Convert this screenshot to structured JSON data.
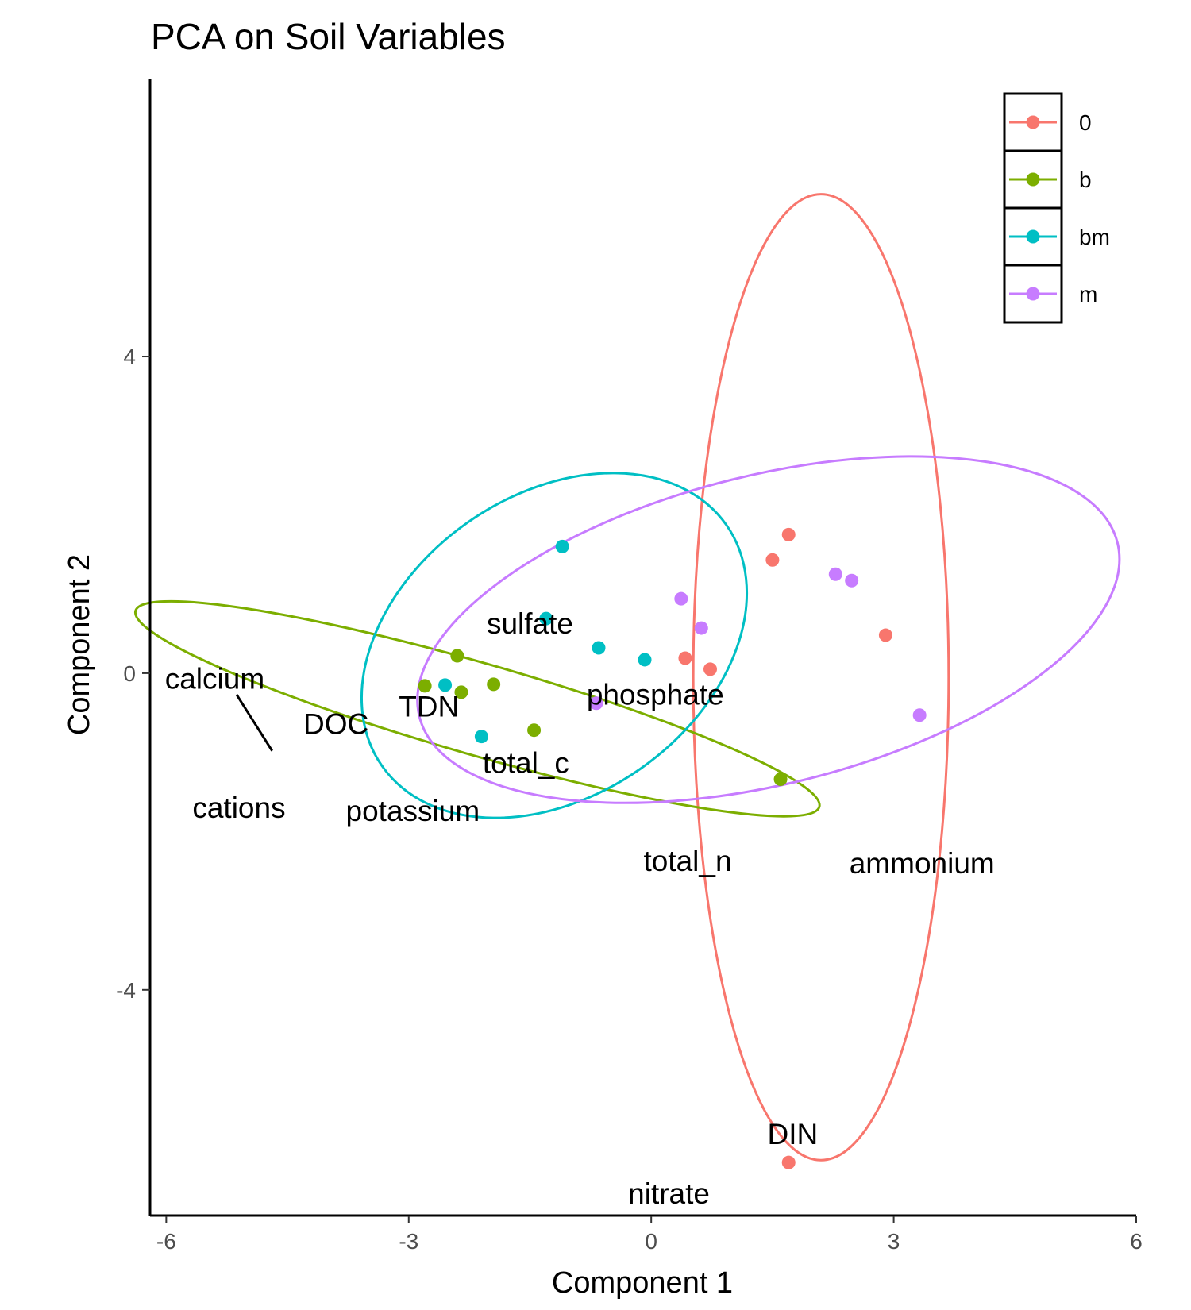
{
  "chart_data": {
    "type": "scatter",
    "title": "PCA on Soil Variables",
    "xlabel": "Component 1",
    "ylabel": "Component 2",
    "xlim": [
      -6.2,
      6.0
    ],
    "ylim": [
      -6.85,
      7.5
    ],
    "x_ticks": [
      -6,
      -3,
      0,
      3,
      6
    ],
    "x_tick_labels": [
      "-6",
      "-3",
      "0",
      "3",
      "6"
    ],
    "y_ticks": [
      4,
      0,
      -4
    ],
    "y_tick_labels": [
      "4",
      "0",
      "-4"
    ],
    "grid": false,
    "legend_position": "top-right",
    "series": [
      {
        "name": "0",
        "color": "#F8766D",
        "points": [
          [
            1.7,
            1.75
          ],
          [
            1.5,
            1.43
          ],
          [
            2.9,
            0.48
          ],
          [
            0.42,
            0.19
          ],
          [
            0.73,
            0.05
          ],
          [
            1.7,
            -6.18
          ]
        ],
        "ellipse": {
          "cx": 2.1,
          "cy": -0.05,
          "rx": 1.58,
          "ry": 6.1,
          "angle_deg": 0
        }
      },
      {
        "name": "b",
        "color": "#7CAE00",
        "points": [
          [
            -2.4,
            0.22
          ],
          [
            -2.8,
            -0.16
          ],
          [
            -2.35,
            -0.24
          ],
          [
            -1.95,
            -0.14
          ],
          [
            -1.45,
            -0.72
          ],
          [
            1.6,
            -1.34
          ]
        ],
        "ellipse": {
          "cx": -2.15,
          "cy": -0.45,
          "rx": 4.4,
          "ry": 0.58,
          "angle_deg": -16
        }
      },
      {
        "name": "bm",
        "color": "#00BFC4",
        "points": [
          [
            -1.1,
            1.6
          ],
          [
            -1.3,
            0.69
          ],
          [
            -0.65,
            0.32
          ],
          [
            -0.08,
            0.17
          ],
          [
            -2.55,
            -0.15
          ],
          [
            -2.1,
            -0.8
          ]
        ],
        "ellipse": {
          "cx": -1.2,
          "cy": 0.35,
          "rx": 2.6,
          "ry": 1.9,
          "angle_deg": 35
        }
      },
      {
        "name": "m",
        "color": "#C77CFF",
        "points": [
          [
            0.37,
            0.94
          ],
          [
            0.62,
            0.57
          ],
          [
            2.28,
            1.25
          ],
          [
            2.48,
            1.17
          ],
          [
            -0.68,
            -0.38
          ],
          [
            3.32,
            -0.53
          ]
        ],
        "ellipse": {
          "cx": 1.45,
          "cy": 0.55,
          "rx": 4.45,
          "ry": 1.95,
          "angle_deg": 14
        }
      }
    ],
    "variable_labels": [
      {
        "text": "sulfate",
        "x": -1.5,
        "y": 0.6
      },
      {
        "text": "calcium",
        "x": -5.4,
        "y": -0.1
      },
      {
        "text": "DOC",
        "x": -3.9,
        "y": -0.67
      },
      {
        "text": "TDN",
        "x": -2.75,
        "y": -0.45
      },
      {
        "text": "phosphate",
        "x": 0.05,
        "y": -0.3
      },
      {
        "text": "total_c",
        "x": -1.55,
        "y": -1.16
      },
      {
        "text": "cations",
        "x": -5.1,
        "y": -1.73
      },
      {
        "text": "potassium",
        "x": -2.95,
        "y": -1.77
      },
      {
        "text": "total_n",
        "x": 0.45,
        "y": -2.4
      },
      {
        "text": "ammonium",
        "x": 3.35,
        "y": -2.43
      },
      {
        "text": "DIN",
        "x": 1.75,
        "y": -5.85
      },
      {
        "text": "nitrate",
        "x": 0.22,
        "y": -6.6
      }
    ],
    "segments": [
      {
        "x1": -5.13,
        "y1": -0.27,
        "x2": -4.69,
        "y2": -0.98
      }
    ]
  }
}
